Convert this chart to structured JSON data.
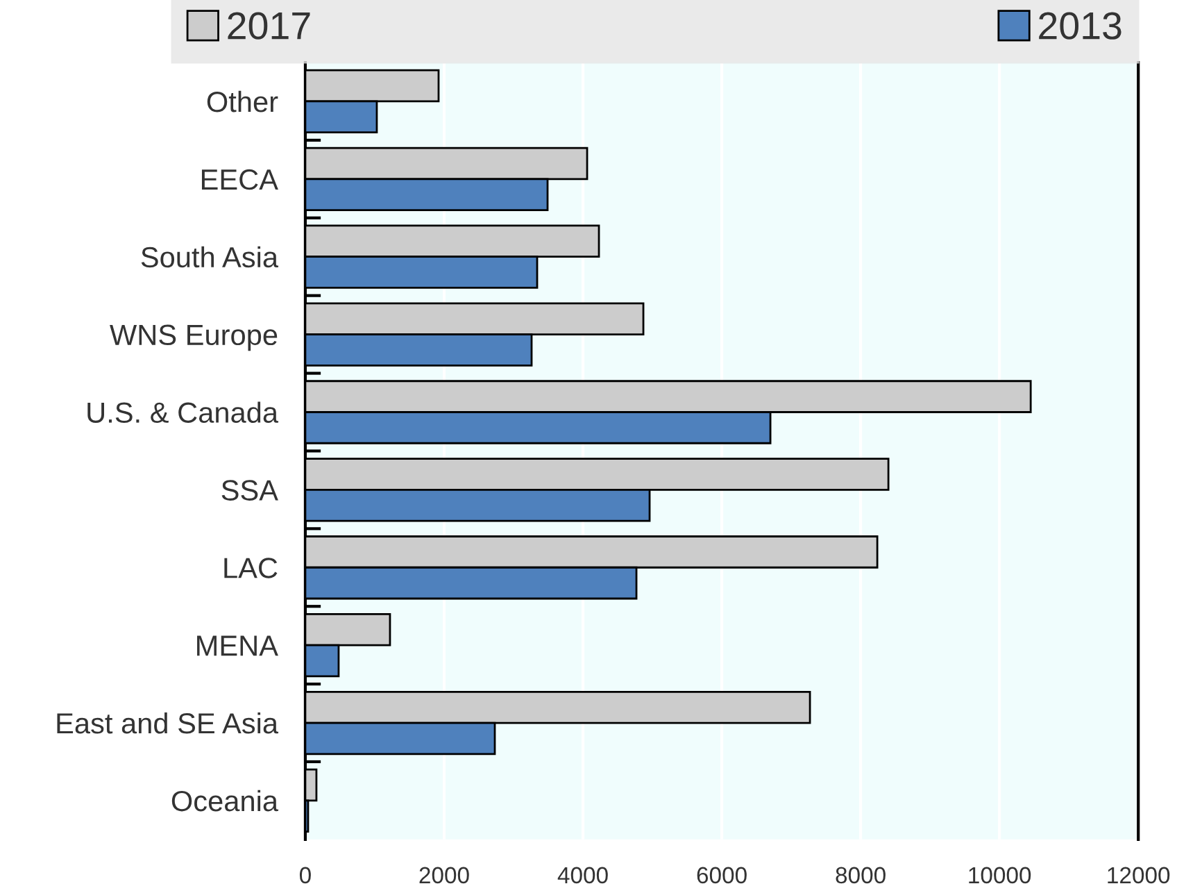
{
  "chart_data": {
    "type": "bar",
    "orientation": "horizontal",
    "categories": [
      "Other",
      "EECA",
      "South Asia",
      "WNS Europe",
      "U.S. & Canada",
      "SSA",
      "LAC",
      "MENA",
      "East and SE Asia",
      "Oceania"
    ],
    "series": [
      {
        "name": "2017",
        "color": "#cccccc",
        "values": [
          1920,
          4060,
          4230,
          4870,
          10450,
          8400,
          8240,
          1220,
          7270,
          160
        ]
      },
      {
        "name": "2013",
        "color": "#4f81bd",
        "values": [
          1030,
          3490,
          3340,
          3260,
          6700,
          4960,
          4770,
          480,
          2730,
          40
        ]
      }
    ],
    "xlim": [
      0,
      12000
    ],
    "xticks": [
      0,
      2000,
      4000,
      6000,
      8000,
      10000,
      12000
    ],
    "grid": "x",
    "legend": "top"
  }
}
